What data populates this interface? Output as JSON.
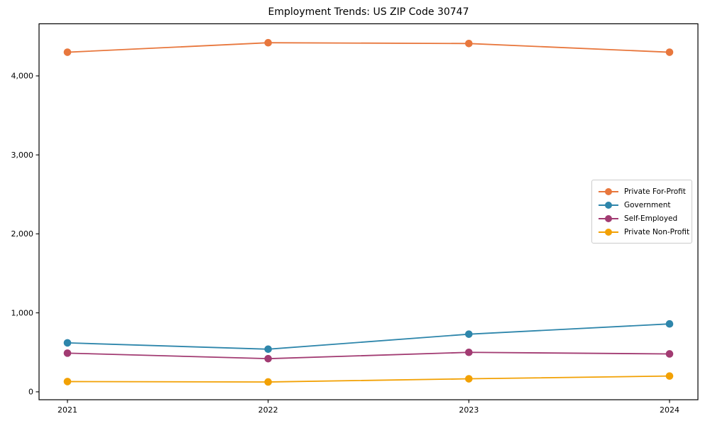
{
  "chart_data": {
    "type": "line",
    "title": "Employment Trends: US ZIP Code 30747",
    "xlabel": "",
    "ylabel": "",
    "x_labels": [
      "2021",
      "2022",
      "2023",
      "2024"
    ],
    "series": [
      {
        "name": "Private For-Profit",
        "color": "#E8773D",
        "values": [
          4300,
          4420,
          4410,
          4300
        ]
      },
      {
        "name": "Government",
        "color": "#2E86AB",
        "values": [
          620,
          540,
          730,
          860
        ]
      },
      {
        "name": "Self-Employed",
        "color": "#A23B72",
        "values": [
          490,
          420,
          500,
          480
        ]
      },
      {
        "name": "Private Non-Profit",
        "color": "#F2A104",
        "values": [
          130,
          125,
          165,
          200
        ]
      }
    ],
    "y_ticks": [
      0,
      1000,
      2000,
      3000,
      4000
    ],
    "y_tick_labels": [
      "0",
      "1,000",
      "2,000",
      "3,000",
      "4,000"
    ],
    "ylim": [
      -100,
      4660
    ],
    "grid": false,
    "legend_position": "center-right",
    "axis_color": "#000000",
    "tick_label_color": "#000000",
    "background_color": "#ffffff",
    "marker": "circle"
  }
}
